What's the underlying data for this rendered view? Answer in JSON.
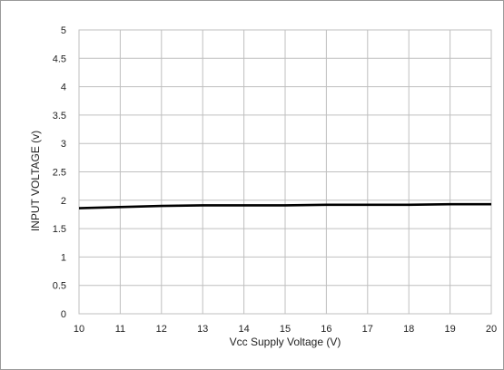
{
  "chart_data": {
    "type": "line",
    "title": "",
    "xlabel": "Vcc Supply Voltage (V)",
    "ylabel": "INPUT VOLTAGE (v)",
    "xlim": [
      10,
      20
    ],
    "ylim": [
      0,
      5
    ],
    "x_ticks": [
      "10",
      "11",
      "12",
      "13",
      "14",
      "15",
      "16",
      "17",
      "18",
      "19",
      "20"
    ],
    "y_ticks": [
      "0",
      "0.5",
      "1",
      "1.5",
      "2",
      "2.5",
      "3",
      "3.5",
      "4",
      "4.5",
      "5"
    ],
    "grid": true,
    "legend": "none",
    "series": [
      {
        "color": "#000000",
        "x": [
          10,
          11,
          12,
          13,
          14,
          15,
          16,
          17,
          18,
          19,
          20
        ],
        "values": [
          1.86,
          1.88,
          1.9,
          1.91,
          1.91,
          1.91,
          1.92,
          1.92,
          1.92,
          1.93,
          1.93
        ]
      }
    ]
  }
}
